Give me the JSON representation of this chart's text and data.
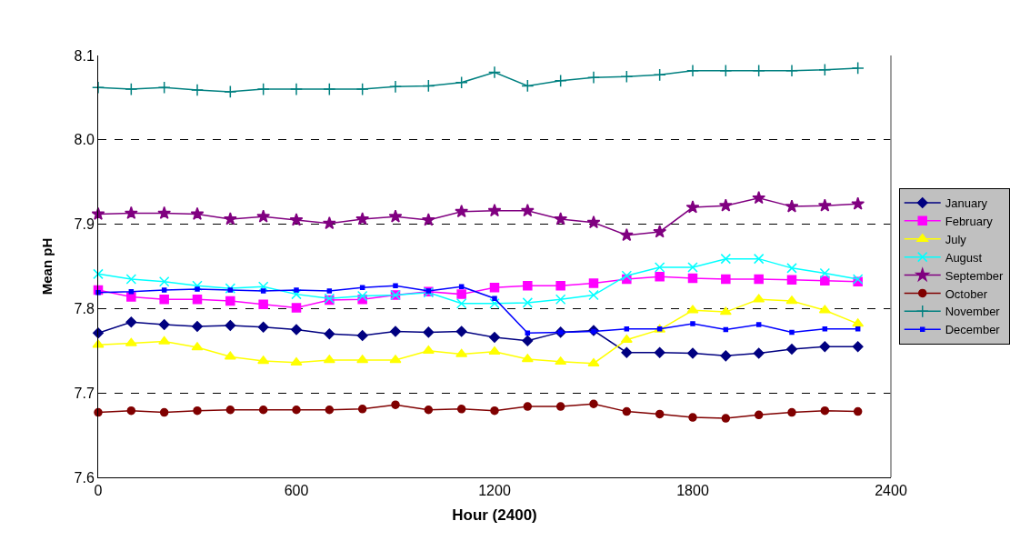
{
  "chart_data": {
    "type": "line",
    "xlabel": "Hour (2400)",
    "ylabel": "Mean pH",
    "x": [
      0,
      100,
      200,
      300,
      400,
      500,
      600,
      700,
      800,
      900,
      1000,
      1100,
      1200,
      1300,
      1400,
      1500,
      1600,
      1700,
      1800,
      1900,
      2000,
      2100,
      2200,
      2300
    ],
    "xlim": [
      0,
      2400
    ],
    "xticks": [
      0,
      600,
      1200,
      1800,
      2400
    ],
    "ylim": [
      7.6,
      8.1
    ],
    "yticks": [
      7.6,
      7.7,
      7.8,
      7.9,
      {
        "value": 8.0,
        "label": "8.0"
      },
      8.1
    ],
    "grid": "y",
    "legend": "right",
    "line_style": "solid",
    "series": [
      {
        "name": "January",
        "color": "#000080",
        "marker": "diamond",
        "values": [
          7.771,
          7.784,
          7.781,
          7.779,
          7.78,
          7.778,
          7.775,
          7.77,
          7.768,
          7.773,
          7.772,
          7.773,
          7.766,
          7.762,
          7.772,
          7.774,
          7.748,
          7.748,
          7.747,
          7.744,
          7.747,
          7.752,
          7.755,
          7.755
        ]
      },
      {
        "name": "February",
        "color": "#ff00ff",
        "marker": "square",
        "values": [
          7.822,
          7.814,
          7.811,
          7.811,
          7.809,
          7.805,
          7.801,
          7.81,
          7.811,
          7.816,
          7.82,
          7.817,
          7.825,
          7.827,
          7.827,
          7.83,
          7.835,
          7.838,
          7.836,
          7.835,
          7.835,
          7.834,
          7.833,
          7.832
        ]
      },
      {
        "name": "July",
        "color": "#ffff00",
        "marker": "triangle",
        "values": [
          7.757,
          7.759,
          7.761,
          7.754,
          7.743,
          7.738,
          7.736,
          7.739,
          7.739,
          7.739,
          7.75,
          7.746,
          7.749,
          7.74,
          7.737,
          7.735,
          7.763,
          7.775,
          7.798,
          7.796,
          7.811,
          7.809,
          7.798,
          7.782
        ]
      },
      {
        "name": "August",
        "color": "#00ffff",
        "marker": "x",
        "values": [
          7.841,
          7.835,
          7.832,
          7.827,
          7.824,
          7.826,
          7.817,
          7.812,
          7.815,
          7.816,
          7.819,
          7.806,
          7.806,
          7.807,
          7.811,
          7.816,
          7.839,
          7.849,
          7.849,
          7.859,
          7.859,
          7.848,
          7.842,
          7.835
        ]
      },
      {
        "name": "September",
        "color": "#800080",
        "marker": "star",
        "values": [
          7.912,
          7.913,
          7.913,
          7.912,
          7.906,
          7.909,
          7.905,
          7.901,
          7.906,
          7.909,
          7.905,
          7.915,
          7.916,
          7.916,
          7.906,
          7.902,
          7.887,
          7.891,
          7.92,
          7.922,
          7.931,
          7.921,
          7.922,
          7.924
        ]
      },
      {
        "name": "October",
        "color": "#800000",
        "marker": "circle",
        "values": [
          7.677,
          7.679,
          7.677,
          7.679,
          7.68,
          7.68,
          7.68,
          7.68,
          7.681,
          7.686,
          7.68,
          7.681,
          7.679,
          7.684,
          7.684,
          7.687,
          7.678,
          7.675,
          7.671,
          7.67,
          7.674,
          7.677,
          7.679,
          7.678
        ]
      },
      {
        "name": "November",
        "color": "#008080",
        "marker": "cross",
        "values": [
          8.062,
          8.06,
          8.062,
          8.059,
          8.057,
          8.06,
          8.06,
          8.06,
          8.06,
          8.063,
          8.064,
          8.068,
          8.08,
          8.064,
          8.07,
          8.074,
          8.075,
          8.077,
          8.082,
          8.082,
          8.082,
          8.082,
          8.083,
          8.085
        ]
      },
      {
        "name": "December",
        "color": "#0000ff",
        "marker": "square-small",
        "values": [
          7.819,
          7.82,
          7.822,
          7.823,
          7.822,
          7.821,
          7.822,
          7.821,
          7.825,
          7.827,
          7.821,
          7.826,
          7.812,
          7.771,
          7.772,
          7.773,
          7.776,
          7.776,
          7.782,
          7.775,
          7.781,
          7.772,
          7.776,
          7.776
        ]
      }
    ]
  }
}
